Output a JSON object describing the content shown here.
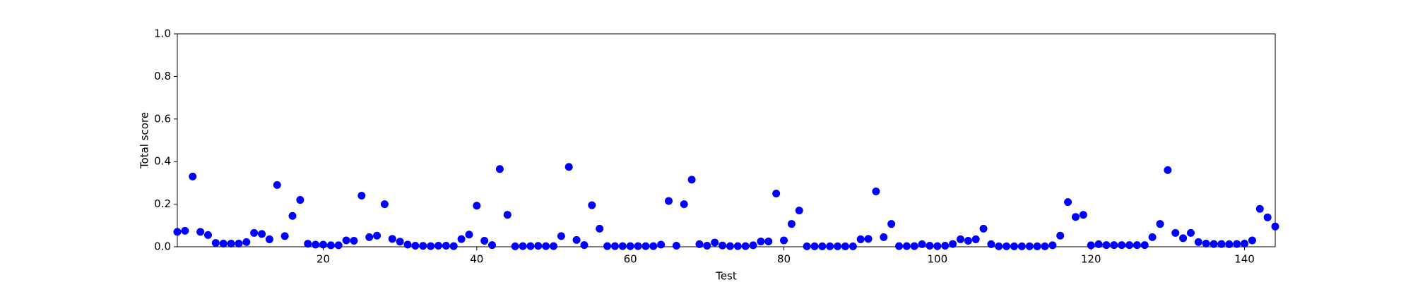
{
  "chart_data": {
    "type": "scatter",
    "x_label": "Test",
    "y_label": "Total score",
    "color": "#0000ff",
    "x": [
      1,
      2,
      3,
      4,
      5,
      6,
      7,
      8,
      9,
      10,
      11,
      12,
      13,
      14,
      15,
      16,
      17,
      18,
      19,
      20,
      21,
      22,
      23,
      24,
      25,
      26,
      27,
      28,
      29,
      30,
      31,
      32,
      33,
      34,
      35,
      36,
      37,
      38,
      39,
      40,
      41,
      42,
      43,
      44,
      45,
      46,
      47,
      48,
      49,
      50,
      51,
      52,
      53,
      54,
      55,
      56,
      57,
      58,
      59,
      60,
      61,
      62,
      63,
      64,
      65,
      66,
      67,
      68,
      69,
      70,
      71,
      72,
      73,
      74,
      75,
      76,
      77,
      78,
      79,
      80,
      81,
      82,
      83,
      84,
      85,
      86,
      87,
      88,
      89,
      90,
      91,
      92,
      93,
      94,
      95,
      96,
      97,
      98,
      99,
      100,
      101,
      102,
      103,
      104,
      105,
      106,
      107,
      108,
      109,
      110,
      111,
      112,
      113,
      114,
      115,
      116,
      117,
      118,
      119,
      120,
      121,
      122,
      123,
      124,
      125,
      126,
      127,
      128,
      129,
      130,
      131,
      132,
      133,
      134,
      135,
      136,
      137,
      138,
      139,
      140,
      141,
      142,
      143,
      144
    ],
    "values": [
      0.07,
      0.075,
      0.33,
      0.07,
      0.055,
      0.018,
      0.015,
      0.015,
      0.015,
      0.022,
      0.065,
      0.06,
      0.035,
      0.29,
      0.05,
      0.145,
      0.22,
      0.014,
      0.01,
      0.01,
      0.007,
      0.007,
      0.03,
      0.028,
      0.24,
      0.045,
      0.052,
      0.2,
      0.037,
      0.024,
      0.01,
      0.005,
      0.004,
      0.003,
      0.005,
      0.005,
      0.003,
      0.036,
      0.057,
      0.193,
      0.028,
      0.008,
      0.365,
      0.15,
      0.002,
      0.003,
      0.003,
      0.004,
      0.003,
      0.003,
      0.05,
      0.375,
      0.032,
      0.008,
      0.195,
      0.085,
      0.003,
      0.003,
      0.003,
      0.003,
      0.003,
      0.003,
      0.003,
      0.01,
      0.215,
      0.005,
      0.2,
      0.315,
      0.012,
      0.005,
      0.02,
      0.006,
      0.003,
      0.003,
      0.003,
      0.007,
      0.025,
      0.025,
      0.25,
      0.03,
      0.107,
      0.17,
      0.002,
      0.002,
      0.002,
      0.002,
      0.002,
      0.002,
      0.002,
      0.035,
      0.037,
      0.26,
      0.045,
      0.107,
      0.003,
      0.003,
      0.003,
      0.012,
      0.005,
      0.003,
      0.005,
      0.013,
      0.035,
      0.028,
      0.035,
      0.085,
      0.012,
      0.002,
      0.002,
      0.002,
      0.002,
      0.002,
      0.002,
      0.002,
      0.007,
      0.052,
      0.21,
      0.14,
      0.15,
      0.007,
      0.012,
      0.008,
      0.008,
      0.008,
      0.008,
      0.008,
      0.008,
      0.045,
      0.107,
      0.36,
      0.065,
      0.04,
      0.065,
      0.022,
      0.015,
      0.013,
      0.013,
      0.012,
      0.013,
      0.015,
      0.03,
      0.178,
      0.138,
      0.095
    ],
    "xlim": [
      1,
      144
    ],
    "xticks": [
      20,
      40,
      60,
      80,
      100,
      120,
      140
    ],
    "ylim": [
      0,
      1
    ],
    "yticks": [
      {
        "value": 0,
        "label": "0.0"
      },
      0.2,
      0.4,
      0.6,
      0.8,
      {
        "value": 1,
        "label": "1.0"
      }
    ]
  }
}
